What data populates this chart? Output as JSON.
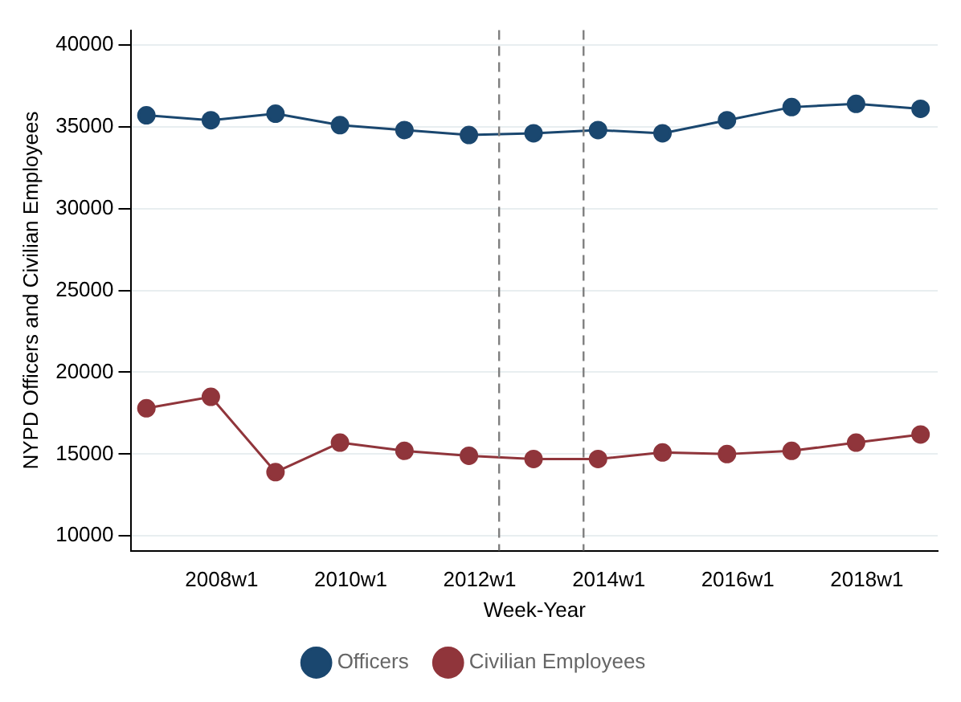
{
  "chart_data": {
    "type": "line",
    "xlabel": "Week-Year",
    "ylabel": "NYPD Officers and Civilian Employees",
    "x": [
      "2006-11-01",
      "2007-11-01",
      "2008-11-01",
      "2009-11-01",
      "2010-11-01",
      "2011-11-01",
      "2012-11-01",
      "2013-11-01",
      "2014-11-01",
      "2015-11-01",
      "2016-11-01",
      "2017-11-01",
      "2018-11-01"
    ],
    "series": [
      {
        "name": "Officers",
        "color": "#1a476f",
        "values": [
          35700,
          35400,
          35800,
          35100,
          34800,
          34500,
          34600,
          34800,
          34600,
          35400,
          36200,
          36400,
          36100
        ]
      },
      {
        "name": "Civilian Employees",
        "color": "#90353b",
        "values": [
          17800,
          18500,
          13900,
          15700,
          15200,
          14900,
          14700,
          14700,
          15100,
          15000,
          15200,
          15700,
          16200
        ]
      }
    ],
    "xlim": [
      "2006-08-08",
      "2019-02-06"
    ],
    "xticks": [
      {
        "value": "2008-01-01",
        "label": "2008w1"
      },
      {
        "value": "2010-01-01",
        "label": "2010w1"
      },
      {
        "value": "2012-01-01",
        "label": "2012w1"
      },
      {
        "value": "2014-01-01",
        "label": "2014w1"
      },
      {
        "value": "2016-01-01",
        "label": "2016w1"
      },
      {
        "value": "2018-01-01",
        "label": "2018w1"
      }
    ],
    "ylim": [
      9100,
      40900
    ],
    "yticks": [
      10000,
      15000,
      20000,
      25000,
      30000,
      35000,
      40000
    ],
    "ref_lines": [
      {
        "axis": "x",
        "value": "2012-04-20",
        "color": "#7f7f7f",
        "line_style": "dashed"
      },
      {
        "axis": "x",
        "value": "2013-08-11",
        "color": "#7f7f7f",
        "line_style": "dashed"
      }
    ],
    "grid": "y",
    "legend": "bottom",
    "marker": "circle",
    "line_style": "solid"
  }
}
